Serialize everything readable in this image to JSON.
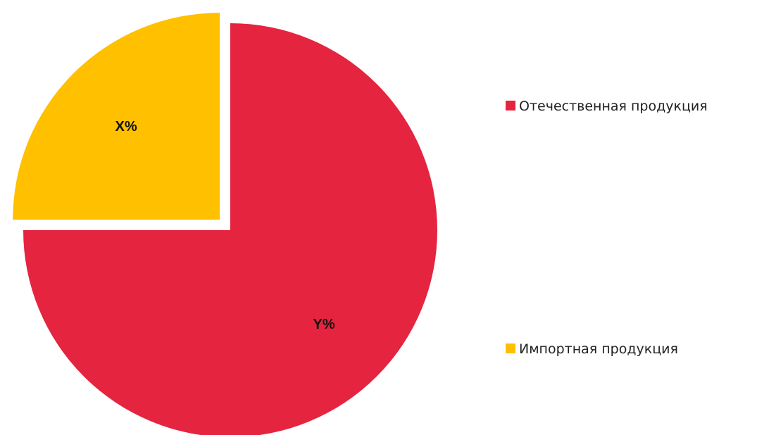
{
  "chart_data": {
    "type": "pie",
    "slices": [
      {
        "label": "Отечественная продукция",
        "value": 75,
        "value_label": "Y%",
        "color": "#E5243F",
        "exploded": false
      },
      {
        "label": "Импортная продукция",
        "value": 25,
        "value_label": "X%",
        "color": "#FFC000",
        "exploded": true
      }
    ],
    "legend": {
      "placement": "right",
      "entries": [
        "Отечественная продукция",
        "Импортная продукция"
      ]
    }
  }
}
